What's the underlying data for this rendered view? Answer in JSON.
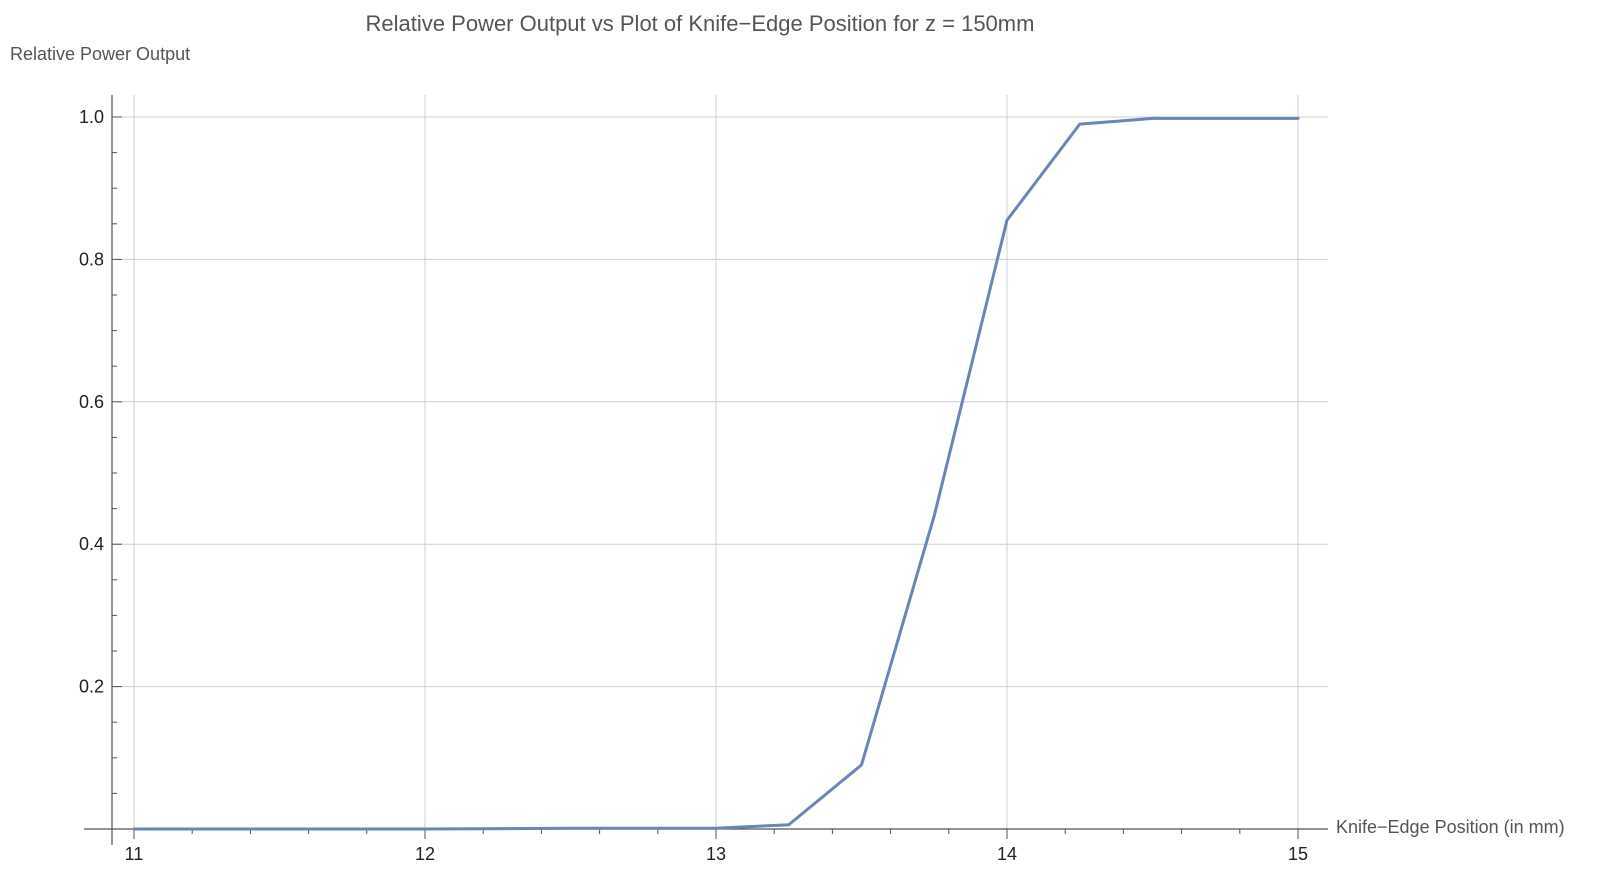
{
  "chart_data": {
    "type": "line",
    "title": "Relative Power Output vs Plot of Knife−Edge Position for z = 150mm",
    "xlabel": "Knife−Edge Position (in mm)",
    "ylabel": "Relative Power Output",
    "xlim": [
      11,
      15
    ],
    "ylim": [
      0,
      1.0
    ],
    "grid": true,
    "x_ticks": [
      11,
      12,
      13,
      14,
      15
    ],
    "x_tick_labels": [
      "11",
      "12",
      "13",
      "14",
      "15"
    ],
    "y_ticks": [
      0.2,
      0.4,
      0.6,
      0.8,
      1.0
    ],
    "y_tick_labels": [
      "0.2",
      "0.4",
      "0.6",
      "0.8",
      "1.0"
    ],
    "series": [
      {
        "color": "#6a85b6",
        "x": [
          11,
          11.5,
          12,
          12.5,
          13,
          13.25,
          13.5,
          13.75,
          14,
          14.25,
          14.5,
          14.75,
          15
        ],
        "y": [
          0.0,
          0.0,
          0.0,
          0.001,
          0.001,
          0.006,
          0.09,
          0.44,
          0.855,
          0.99,
          0.998,
          0.998,
          0.998
        ]
      }
    ]
  }
}
